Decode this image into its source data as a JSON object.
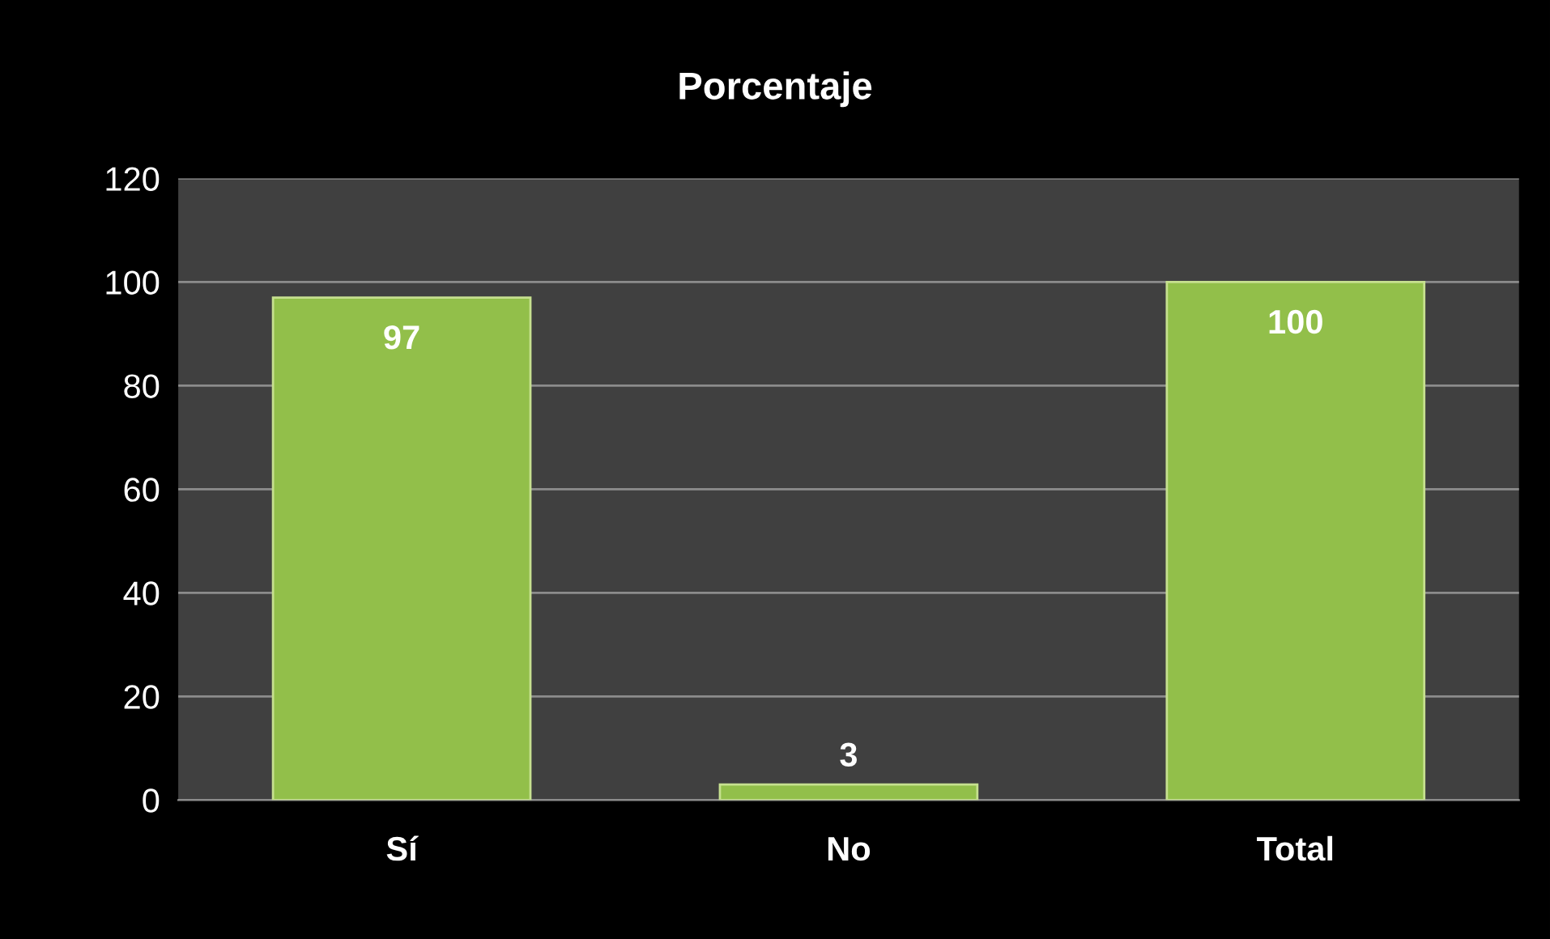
{
  "chart_data": {
    "type": "bar",
    "title": "Porcentaje",
    "categories": [
      "Sí",
      "No",
      "Total"
    ],
    "values": [
      97,
      3,
      100
    ],
    "color": "#92bf4a",
    "ylim": [
      0,
      120
    ],
    "yticks": [
      0,
      20,
      40,
      60,
      80,
      100,
      120
    ],
    "grid": "y",
    "data_labels": true
  }
}
